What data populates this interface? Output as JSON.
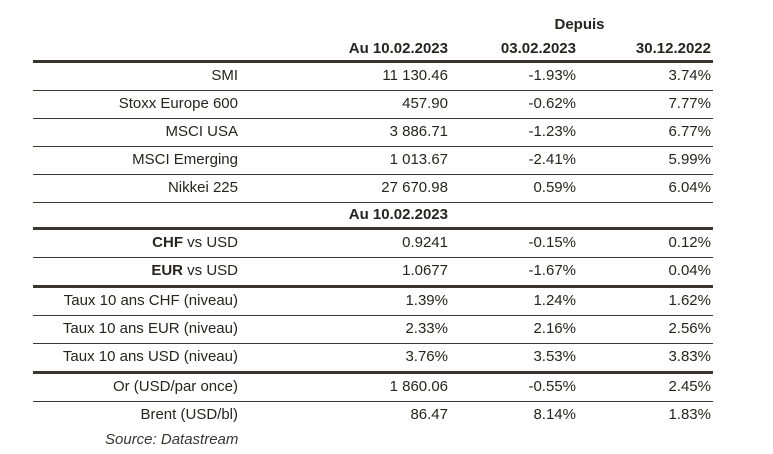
{
  "table": {
    "depuis_label": "Depuis",
    "col_headers": {
      "value_date": "Au 10.02.2023",
      "since_1": "03.02.2023",
      "since_2": "30.12.2022"
    },
    "subheader": "Au 10.02.2023",
    "rows": [
      {
        "label": "SMI",
        "value": "11 130.46",
        "since_03_02": "-1.93%",
        "since_30_12": "3.74%"
      },
      {
        "label": "Stoxx Europe 600",
        "value": "457.90",
        "since_03_02": "-0.62%",
        "since_30_12": "7.77%"
      },
      {
        "label": "MSCI USA",
        "value": "3 886.71",
        "since_03_02": "-1.23%",
        "since_30_12": "6.77%"
      },
      {
        "label": "MSCI Emerging",
        "value": "1 013.67",
        "since_03_02": "-2.41%",
        "since_30_12": "5.99%"
      },
      {
        "label": "Nikkei 225",
        "value": "27 670.98",
        "since_03_02": "0.59%",
        "since_30_12": "6.04%"
      },
      {
        "label_bold": "CHF",
        "label_rest": " vs USD",
        "value": "0.9241",
        "since_03_02": "-0.15%",
        "since_30_12": "0.12%"
      },
      {
        "label_bold": "EUR",
        "label_rest": " vs USD",
        "value": "1.0677",
        "since_03_02": "-1.67%",
        "since_30_12": "0.04%"
      },
      {
        "label": "Taux 10 ans CHF (niveau)",
        "value": "1.39%",
        "since_03_02": "1.24%",
        "since_30_12": "1.62%"
      },
      {
        "label": "Taux 10 ans EUR (niveau)",
        "value": "2.33%",
        "since_03_02": "2.16%",
        "since_30_12": "2.56%"
      },
      {
        "label": "Taux 10 ans USD (niveau)",
        "value": "3.76%",
        "since_03_02": "3.53%",
        "since_30_12": "3.83%"
      },
      {
        "label": "Or (USD/par once)",
        "value": "1 860.06",
        "since_03_02": "-0.55%",
        "since_30_12": "2.45%"
      },
      {
        "label": "Brent (USD/bl)",
        "value": "86.47",
        "since_03_02": "8.14%",
        "since_30_12": "1.83%"
      }
    ],
    "source": "Source: Datastream"
  },
  "colors": {
    "text": "#272320",
    "rule_thick": "#39342e",
    "rule_thin": "#3c3731",
    "background": "#ffffff"
  }
}
